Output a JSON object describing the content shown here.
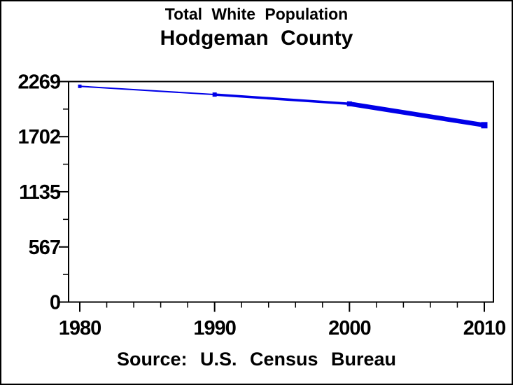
{
  "window": {
    "background": "#FFFFFF",
    "border_color": "#000000",
    "text_color": "#000000"
  },
  "chart_data": {
    "type": "line",
    "title": "Total White Population",
    "subtitle": "Hodgeman County",
    "source_note": "Source: U.S. Census Bureau",
    "series": [
      {
        "name": "Total White Population",
        "x": [
          1980,
          1990,
          2000,
          2010
        ],
        "values": [
          2220,
          2135,
          2040,
          1820
        ]
      }
    ],
    "x_ticks": [
      1980,
      1990,
      2000,
      2010
    ],
    "x_tick_labels": [
      "1980",
      "1990",
      "2000",
      "2010"
    ],
    "x_minor_ticks": [
      1982,
      1984,
      1986,
      1988,
      1992,
      1994,
      1996,
      1998,
      2002,
      2004,
      2006,
      2008
    ],
    "y_ticks": [
      0,
      567,
      1135,
      1702,
      2269
    ],
    "y_tick_labels": [
      "0",
      "567",
      "1135",
      "1702",
      "2269"
    ],
    "y_minor_ticks": [
      283.5,
      851,
      1418.5,
      1985.5
    ],
    "xlim": [
      1980,
      2010
    ],
    "ylim": [
      0,
      2269
    ],
    "grid": false,
    "legend": "none",
    "line_color": "#0000E8",
    "marker": "square",
    "axis_color": "#000000"
  }
}
